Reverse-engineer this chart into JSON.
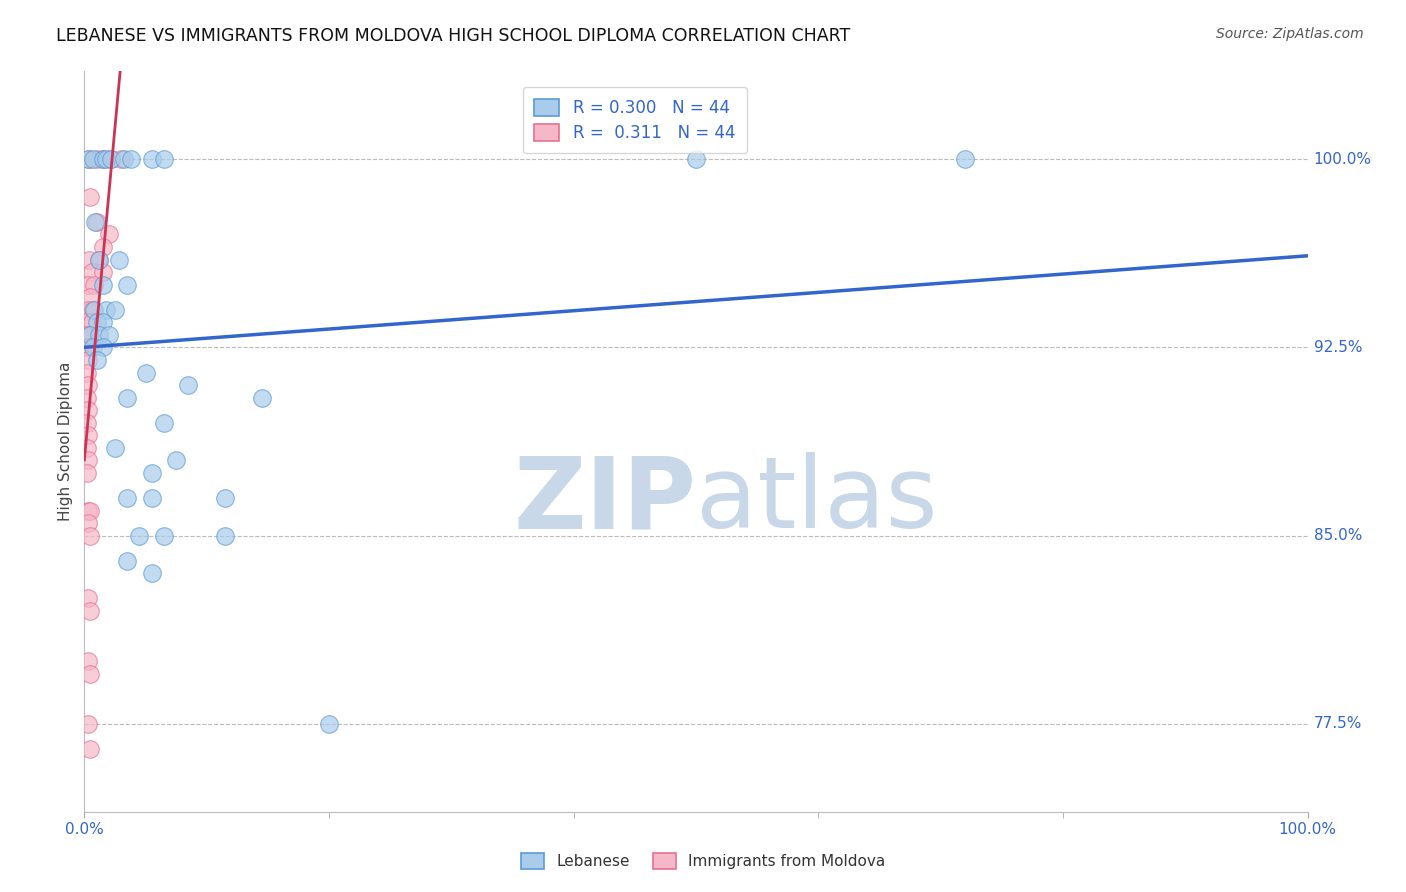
{
  "title": "LEBANESE VS IMMIGRANTS FROM MOLDOVA HIGH SCHOOL DIPLOMA CORRELATION CHART",
  "source": "Source: ZipAtlas.com",
  "ylabel": "High School Diploma",
  "xlim": [
    0.0,
    100.0
  ],
  "ylim": [
    74.0,
    103.5
  ],
  "yticks": [
    77.5,
    85.0,
    92.5,
    100.0
  ],
  "ytick_labels": [
    "77.5%",
    "85.0%",
    "92.5%",
    "100.0%"
  ],
  "R_blue": 0.3,
  "R_pink": 0.311,
  "N": 44,
  "legend_label_blue": "Lebanese",
  "legend_label_pink": "Immigrants from Moldova",
  "blue_color": "#A8CCEA",
  "pink_color": "#F5B8C8",
  "blue_edge_color": "#5B9BD5",
  "pink_edge_color": "#E87090",
  "blue_line_color": "#3366CC",
  "pink_line_color": "#CC3355",
  "blue_scatter": [
    [
      0.3,
      100.0
    ],
    [
      0.7,
      100.0
    ],
    [
      1.5,
      100.0
    ],
    [
      1.8,
      100.0
    ],
    [
      2.2,
      100.0
    ],
    [
      3.2,
      100.0
    ],
    [
      3.8,
      100.0
    ],
    [
      5.5,
      100.0
    ],
    [
      6.5,
      100.0
    ],
    [
      50.0,
      100.0
    ],
    [
      72.0,
      100.0
    ],
    [
      0.9,
      97.5
    ],
    [
      1.2,
      96.0
    ],
    [
      2.8,
      96.0
    ],
    [
      1.5,
      95.0
    ],
    [
      3.5,
      95.0
    ],
    [
      0.8,
      94.0
    ],
    [
      1.8,
      94.0
    ],
    [
      2.5,
      94.0
    ],
    [
      1.0,
      93.5
    ],
    [
      1.5,
      93.5
    ],
    [
      0.5,
      93.0
    ],
    [
      1.2,
      93.0
    ],
    [
      2.0,
      93.0
    ],
    [
      0.7,
      92.5
    ],
    [
      1.5,
      92.5
    ],
    [
      1.0,
      92.0
    ],
    [
      5.0,
      91.5
    ],
    [
      8.5,
      91.0
    ],
    [
      3.5,
      90.5
    ],
    [
      14.5,
      90.5
    ],
    [
      6.5,
      89.5
    ],
    [
      2.5,
      88.5
    ],
    [
      7.5,
      88.0
    ],
    [
      5.5,
      87.5
    ],
    [
      3.5,
      86.5
    ],
    [
      5.5,
      86.5
    ],
    [
      11.5,
      86.5
    ],
    [
      4.5,
      85.0
    ],
    [
      6.5,
      85.0
    ],
    [
      11.5,
      85.0
    ],
    [
      3.5,
      84.0
    ],
    [
      5.5,
      83.5
    ],
    [
      20.0,
      77.5
    ]
  ],
  "pink_scatter": [
    [
      0.4,
      100.0
    ],
    [
      1.0,
      100.0
    ],
    [
      1.5,
      100.0
    ],
    [
      2.2,
      100.0
    ],
    [
      3.0,
      100.0
    ],
    [
      0.5,
      98.5
    ],
    [
      1.0,
      97.5
    ],
    [
      2.0,
      97.0
    ],
    [
      1.5,
      96.5
    ],
    [
      0.4,
      96.0
    ],
    [
      1.2,
      96.0
    ],
    [
      0.6,
      95.5
    ],
    [
      1.5,
      95.5
    ],
    [
      0.3,
      95.0
    ],
    [
      0.8,
      95.0
    ],
    [
      0.5,
      94.5
    ],
    [
      0.3,
      94.0
    ],
    [
      0.7,
      94.0
    ],
    [
      0.2,
      93.5
    ],
    [
      0.6,
      93.5
    ],
    [
      0.2,
      93.0
    ],
    [
      0.4,
      93.0
    ],
    [
      0.2,
      92.5
    ],
    [
      0.5,
      92.5
    ],
    [
      0.3,
      92.0
    ],
    [
      0.2,
      91.5
    ],
    [
      0.3,
      91.0
    ],
    [
      0.2,
      90.5
    ],
    [
      0.3,
      90.0
    ],
    [
      0.2,
      89.5
    ],
    [
      0.3,
      89.0
    ],
    [
      0.2,
      88.5
    ],
    [
      0.3,
      88.0
    ],
    [
      0.2,
      87.5
    ],
    [
      0.3,
      86.0
    ],
    [
      0.5,
      86.0
    ],
    [
      0.3,
      85.5
    ],
    [
      0.5,
      85.0
    ],
    [
      0.3,
      82.5
    ],
    [
      0.5,
      82.0
    ],
    [
      0.3,
      80.0
    ],
    [
      0.5,
      79.5
    ],
    [
      0.3,
      77.5
    ],
    [
      0.5,
      76.5
    ]
  ],
  "background_color": "#FFFFFF",
  "grid_color": "#BBBBBB",
  "watermark_zip_color": "#C8D8E8",
  "watermark_atlas_color": "#C8D8E8"
}
